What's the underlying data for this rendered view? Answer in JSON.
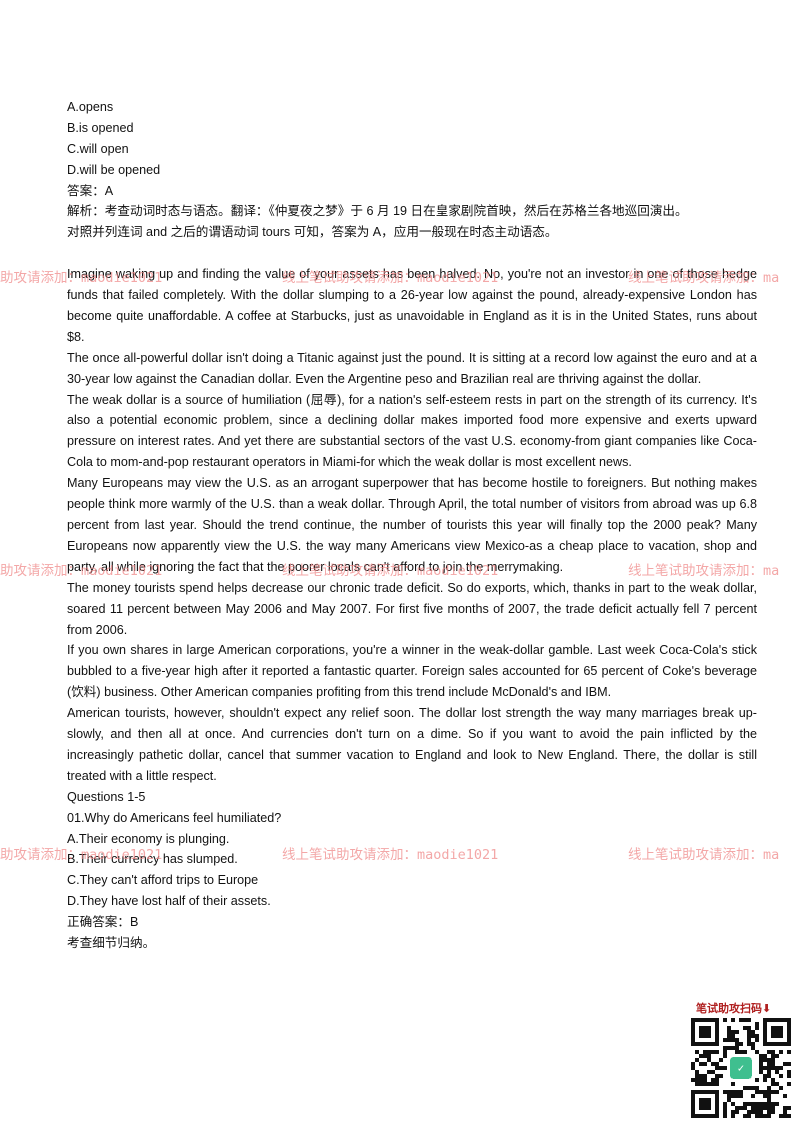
{
  "options_prev": [
    "A.opens",
    "B.is opened",
    "C.will open",
    "D.will be opened"
  ],
  "answer_prev": "答案：A",
  "analysis_prev": [
    "解析：考查动词时态与语态。翻译：《仲夏夜之梦》于 6 月 19 日在皇家剧院首映，然后在苏格兰各地巡回演出。",
    "对照并列连词 and 之后的谓语动词 tours 可知，答案为 A，应用一般现在时态主动语态。"
  ],
  "passage": [
    "Imagine waking up and finding the value of your assets has been halved. No, you're not an investor in one of those hedge funds that failed completely. With the dollar slumping to a 26-year low against the pound, already-expensive London has become quite unaffordable. A coffee at Starbucks, just as unavoidable in England as it is in the United States, runs about $8.",
    "The once all-powerful dollar isn't doing a Titanic against just the pound. It is sitting at a record low against the euro and at a 30-year low against the Canadian dollar. Even the Argentine peso and Brazilian real are thriving against the dollar.",
    "The weak dollar is a source of humiliation (屈辱), for a nation's self-esteem rests in part on the strength of its currency. It's also a potential economic problem, since a declining dollar makes imported food more expensive and exerts upward pressure on interest rates. And yet there are substantial sectors of the vast U.S. economy-from giant companies like Coca-Cola to mom-and-pop restaurant operators in Miami-for which the weak dollar is most excellent news.",
    "Many Europeans may view the U.S. as an arrogant superpower that has become hostile to foreigners. But nothing makes people think more warmly of the U.S. than a weak dollar. Through April, the total number of visitors from abroad was up 6.8 percent from last year. Should the trend continue, the number of tourists this year will finally top the 2000 peak? Many Europeans now apparently view the U.S. the way many Americans view Mexico-as a cheap place to vacation, shop and party, all while ignoring the fact that the poorer locals can't afford to join the merrymaking.",
    "The money tourists spend helps decrease our chronic trade deficit. So do exports, which, thanks in part to the weak dollar, soared 11 percent between May 2006 and May 2007. For first five months of 2007, the trade deficit actually fell 7 percent from 2006.",
    "If you own shares in large American corporations, you're a winner in the weak-dollar gamble. Last week Coca-Cola's stick bubbled to a five-year high after it reported a fantastic quarter. Foreign sales accounted for 65 percent of Coke's beverage (饮料) business. Other American companies profiting from this trend include McDonald's and IBM.",
    "American tourists, however, shouldn't expect any relief soon. The dollar lost strength the way many marriages break up- slowly, and then all at once. And currencies don't turn on a dime. So if you want to avoid the pain inflicted by the increasingly pathetic dollar, cancel that summer vacation to England and look to New England. There, the dollar is still treated with a little respect."
  ],
  "questions_header": "Questions 1-5",
  "question1": {
    "stem": "01.Why do Americans feel humiliated?",
    "options": [
      "A.Their economy is plunging.",
      "B.Their currency has slumped.",
      "C.They can't afford trips to Europe",
      "D.They have lost half of their assets."
    ],
    "answer": "正确答案：B",
    "note": "考查细节归纳。"
  },
  "watermark": {
    "text_full": "线上笔试助攻请添加：maodie1021",
    "text_left": "助攻请添加：maodie1021",
    "text_right": "线上笔试助攻请添加：ma"
  },
  "qr_caption": "笔试助攻扫码⬇",
  "colors": {
    "watermark": "#f08a8a",
    "qr_caption": "#b02020",
    "qr_center": "#3fbf8f"
  }
}
